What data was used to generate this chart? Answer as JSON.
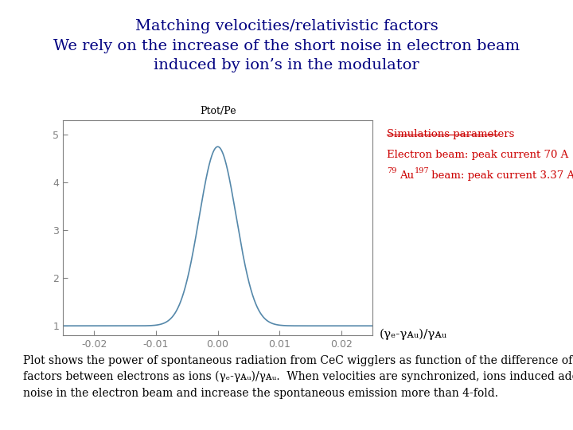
{
  "title_line1": "Matching velocities/relativistic factors",
  "title_line2": "We rely on the increase of the short noise in electron beam",
  "title_line3": "induced by ion’s in the modulator",
  "title_color": "#000080",
  "title_fontsize": 14,
  "ylabel": "Ptot/Pe",
  "xlim": [
    -0.025,
    0.025
  ],
  "ylim": [
    0.8,
    5.3
  ],
  "xticks": [
    -0.02,
    -0.01,
    0.0,
    0.01,
    0.02
  ],
  "yticks": [
    1,
    2,
    3,
    4,
    5
  ],
  "curve_color": "#5588aa",
  "curve_sigma": 0.003,
  "curve_peak": 4.75,
  "curve_baseline": 1.0,
  "annotation_title": "Simulations parameters",
  "annotation_line1": "Electron beam: peak current 70 A",
  "annotation_line2_suffix": " beam: peak current 3.37 A",
  "annotation_color": "#cc0000",
  "annotation_fontsize": 9.5,
  "caption_line1": "Plot shows the power of spontaneous radiation from CeC wigglers as function of the difference of relativistic",
  "caption_line2": "factors between electrons as ions (γₑ-γᴀᵤ)/γᴀᵤ.  When velocities are synchronized, ions induced additional short",
  "caption_line3": "noise in the electron beam and increase the spontaneous emission more than 4-fold.",
  "caption_fontsize": 10,
  "background_color": "#ffffff",
  "axes_color": "#808080",
  "tick_color": "#808080",
  "xlabel_str": "(γₑ-γᴀᵤ)/γᴀᵤ"
}
